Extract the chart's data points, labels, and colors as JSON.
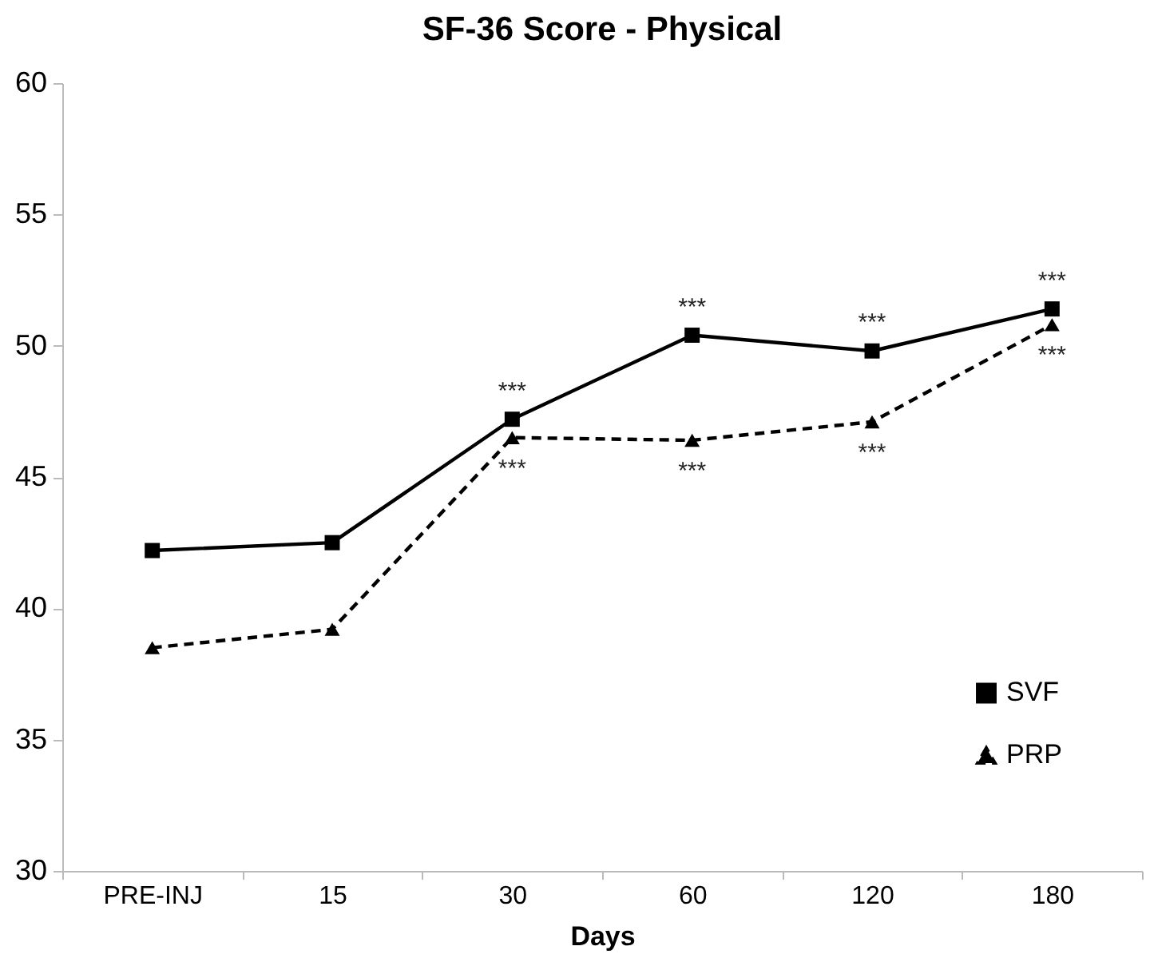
{
  "chart_data": {
    "type": "line",
    "title": "SF-36 Score - Physical",
    "xlabel": "Days",
    "categories": [
      "PRE-INJ",
      "15",
      "30",
      "60",
      "120",
      "180"
    ],
    "series": [
      {
        "name": "SVF",
        "color": "#000000",
        "marker": "square",
        "line_style": "solid",
        "values": [
          42.2,
          42.5,
          47.2,
          50.4,
          49.8,
          51.4
        ]
      },
      {
        "name": "PRP",
        "color": "#000000",
        "marker": "triangle",
        "line_style": "dashed",
        "values": [
          38.5,
          39.2,
          46.5,
          46.4,
          47.1,
          50.8
        ]
      }
    ],
    "ylim": [
      30,
      60
    ],
    "yticks": [
      30,
      35,
      40,
      45,
      50,
      55,
      60
    ],
    "grid": false,
    "legend": "right",
    "annotations": [
      {
        "text": "***",
        "x": "30",
        "y": 47.2
      },
      {
        "text": "***",
        "x": "30",
        "y": 46.5
      },
      {
        "text": "***",
        "x": "60",
        "y": 50.4
      },
      {
        "text": "***",
        "x": "60",
        "y": 46.4
      },
      {
        "text": "***",
        "x": "120",
        "y": 49.8
      },
      {
        "text": "***",
        "x": "120",
        "y": 47.1
      },
      {
        "text": "***",
        "x": "180",
        "y": 51.4
      },
      {
        "text": "***",
        "x": "180",
        "y": 50.8
      }
    ]
  }
}
